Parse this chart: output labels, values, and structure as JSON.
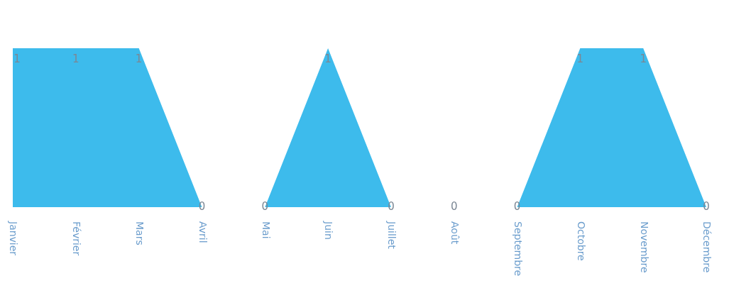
{
  "chart_data": {
    "type": "area",
    "categories": [
      "Janvier",
      "Février",
      "Mars",
      "Avril",
      "Mai",
      "Juin",
      "Juillet",
      "Août",
      "Septembre",
      "Octobre",
      "Novembre",
      "Décembre"
    ],
    "values": [
      1,
      1,
      1,
      0,
      0,
      1,
      0,
      0,
      0,
      1,
      1,
      0
    ],
    "color": "#3dbbec",
    "data_labels": true
  }
}
